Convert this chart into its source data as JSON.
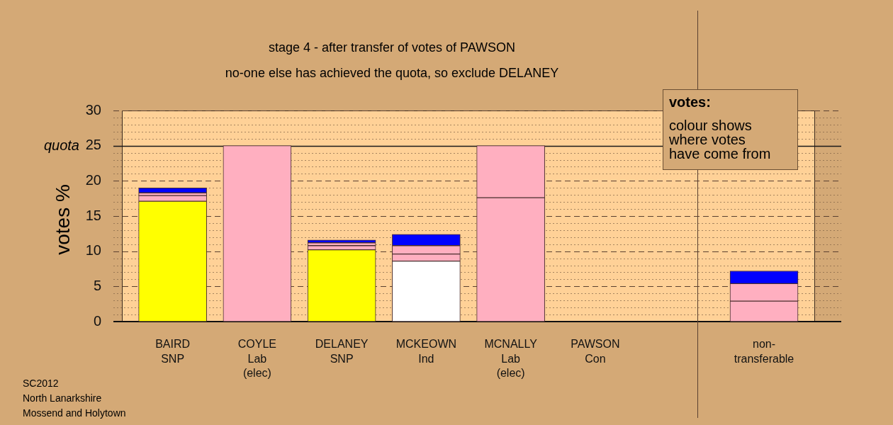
{
  "chart_data": [
    {
      "type": "bar",
      "title": "stage 4 - after transfer of votes of PAWSON",
      "subtitle": "no-one else has achieved the quota, so exclude DELANEY",
      "ylabel": "votes %",
      "categories": [
        "BAIRD\nSNP",
        "COYLE\nLab\n(elec)",
        "DELANEY\nSNP",
        "MCKEOWN\nInd",
        "MCNALLY\nLab\n(elec)",
        "PAWSON\nCon"
      ],
      "stacked": true,
      "series": [
        {
          "colors": [
            "#ffff00",
            "#ffafc0",
            "#ffff00",
            "#ffffff",
            "#ffafc0",
            "#ffafc0"
          ],
          "values": [
            17.1,
            25,
            10.2,
            8.6,
            17.6,
            0
          ]
        },
        {
          "color": "#ffafc0",
          "values": [
            0.8,
            null,
            0.6,
            1.0,
            7.4,
            null
          ]
        },
        {
          "color": "#ffafc0",
          "values": [
            0.4,
            null,
            0.4,
            1.2,
            null,
            null
          ]
        },
        {
          "color": "#0000ff",
          "values": [
            0.7,
            null,
            0.4,
            1.6,
            null,
            null
          ]
        }
      ],
      "ylim": [
        0,
        30
      ],
      "yticks": [
        0,
        {
          "value": 1,
          "label": null
        },
        {
          "value": 2,
          "label": null
        },
        {
          "value": 3,
          "label": null
        },
        {
          "value": 4,
          "label": null
        },
        5,
        {
          "value": 6,
          "label": null
        },
        {
          "value": 7,
          "label": null
        },
        {
          "value": 8,
          "label": null
        },
        {
          "value": 9,
          "label": null
        },
        10,
        {
          "value": 11,
          "label": null
        },
        {
          "value": 12,
          "label": null
        },
        {
          "value": 13,
          "label": null
        },
        {
          "value": 14,
          "label": null
        },
        15,
        {
          "value": 16,
          "label": null
        },
        {
          "value": 17,
          "label": null
        },
        {
          "value": 18,
          "label": null
        },
        {
          "value": 19,
          "label": null
        },
        20,
        {
          "value": 21,
          "label": null
        },
        {
          "value": 22,
          "label": null
        },
        {
          "value": 23,
          "label": null
        },
        {
          "value": 24,
          "label": null
        },
        25,
        {
          "value": 26,
          "label": null
        },
        {
          "value": 27,
          "label": null
        },
        {
          "value": 28,
          "label": null
        },
        {
          "value": 29,
          "label": null
        },
        30
      ],
      "grid": "y",
      "ref_lines": [
        {
          "axis": "y",
          "value": 25,
          "label": "quota"
        }
      ],
      "annotations": [
        "SC2012\nNorth Lanarkshire\nMossend and Holytown"
      ]
    },
    {
      "type": "bar",
      "categories": [
        "non-\ntransferable"
      ],
      "stacked": true,
      "series": [
        {
          "colors": [
            "#ffafc0"
          ],
          "values": [
            2.9
          ]
        },
        {
          "color": "#ffafc0",
          "values": [
            2.5
          ]
        },
        {
          "color": "#0000ff",
          "values": [
            1.8
          ]
        }
      ],
      "ylim": [
        0,
        30
      ],
      "yticks": [
        0,
        {
          "value": 1,
          "label": null
        },
        {
          "value": 2,
          "label": null
        },
        {
          "value": 3,
          "label": null
        },
        {
          "value": 4,
          "label": null
        },
        5,
        {
          "value": 6,
          "label": null
        },
        {
          "value": 7,
          "label": null
        },
        {
          "value": 8,
          "label": null
        },
        {
          "value": 9,
          "label": null
        },
        10,
        {
          "value": 11,
          "label": null
        },
        {
          "value": 12,
          "label": null
        },
        {
          "value": 13,
          "label": null
        },
        {
          "value": 14,
          "label": null
        },
        15,
        {
          "value": 16,
          "label": null
        },
        {
          "value": 17,
          "label": null
        },
        {
          "value": 18,
          "label": null
        },
        {
          "value": 19,
          "label": null
        },
        20,
        {
          "value": 21,
          "label": null
        },
        {
          "value": 22,
          "label": null
        },
        {
          "value": 23,
          "label": null
        },
        {
          "value": 24,
          "label": null
        },
        25,
        {
          "value": 26,
          "label": null
        },
        {
          "value": 27,
          "label": null
        },
        {
          "value": 28,
          "label": null
        },
        {
          "value": 29,
          "label": null
        },
        30
      ],
      "tick_labels": "x",
      "grid": "y",
      "ref_lines": [
        {
          "axis": "y",
          "value": 25
        }
      ],
      "annotations": [
        "votes:",
        "colour shows\nwhere votes\nhave come from"
      ]
    }
  ]
}
